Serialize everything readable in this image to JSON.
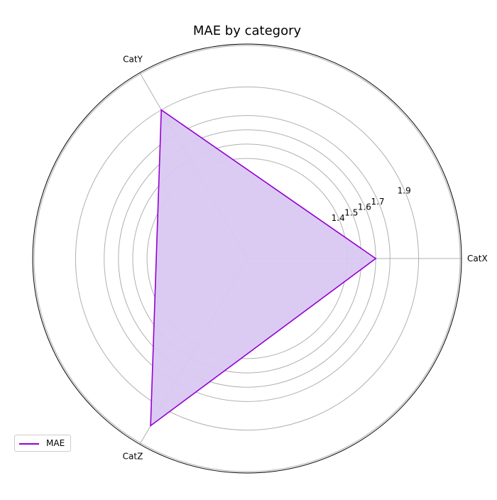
{
  "chart_data": {
    "type": "radar",
    "title": "MAE by category",
    "categories": [
      "CatX",
      "CatY",
      "CatZ"
    ],
    "series": [
      {
        "name": "MAE",
        "values": [
          1.6,
          1.9,
          2.05
        ]
      }
    ],
    "radial_ticks": [
      1.4,
      1.5,
      1.6,
      1.7,
      1.9
    ],
    "rlim": [
      0.7,
      2.2
    ],
    "grid": true,
    "legend_position": "lower-left"
  },
  "colors": {
    "line": "#9400d3",
    "fill": "#d9c8f2",
    "grid": "#b0b0b0",
    "frame": "#000000"
  }
}
